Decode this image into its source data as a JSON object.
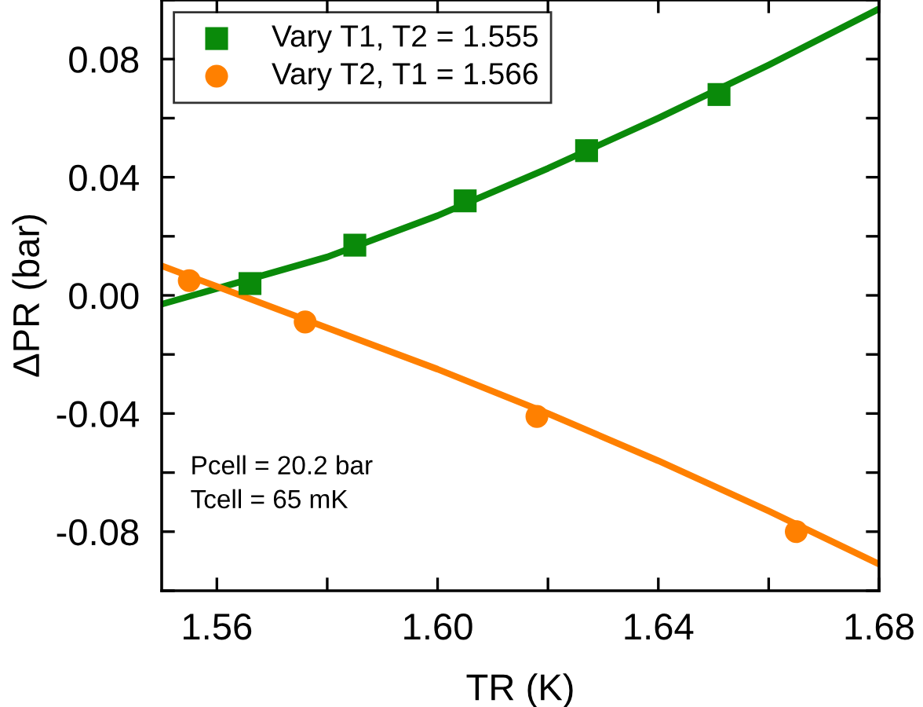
{
  "chart_data": {
    "type": "scatter",
    "xlabel": "TR (K)",
    "ylabel": "ΔPR (bar)",
    "xlim": [
      1.55,
      1.68
    ],
    "xticks": [
      1.56,
      {
        "value": 1.58,
        "label": null
      },
      {
        "value": 1.6,
        "label": "1.60"
      },
      {
        "value": 1.62,
        "label": null
      },
      1.64,
      {
        "value": 1.66,
        "label": null
      },
      1.68
    ],
    "ylim": [
      -0.1,
      0.1
    ],
    "yticks": [
      {
        "value": -0.1,
        "label": null
      },
      -0.08,
      {
        "value": -0.06,
        "label": null
      },
      -0.04,
      {
        "value": -0.02,
        "label": null
      },
      {
        "value": 0,
        "label": "0.00"
      },
      {
        "value": 0.02,
        "label": null
      },
      0.04,
      {
        "value": 0.06,
        "label": null
      },
      0.08,
      {
        "value": 0.1,
        "label": null
      }
    ],
    "grid": false,
    "legend": "top left",
    "annotations": [
      "Pcell = 20.2 bar\nTcell = 65 mK"
    ],
    "series": [
      {
        "name": "Vary T1, T2 = 1.555",
        "color": "#0a8a0a",
        "marker": "square",
        "x": [
          1.566,
          1.585,
          1.605,
          1.627,
          1.651
        ],
        "values": [
          0.004,
          0.017,
          0.032,
          0.049,
          0.068
        ]
      },
      {
        "name": "Vary T2, T1 = 1.566",
        "color": "#ff8000",
        "marker": "circle",
        "x": [
          1.555,
          1.576,
          1.618,
          1.665
        ],
        "values": [
          0.005,
          -0.009,
          -0.041,
          -0.08
        ]
      },
      {
        "type": "line",
        "color": "#0a8a0a",
        "line_style": "solid",
        "x": [
          1.55,
          1.58,
          1.6,
          1.62,
          1.64,
          1.66,
          1.68
        ],
        "values": [
          -0.003,
          0.013,
          0.027,
          0.043,
          0.06,
          0.078,
          0.097
        ]
      },
      {
        "type": "line",
        "color": "#ff8000",
        "line_style": "solid",
        "x": [
          1.55,
          1.56,
          1.58,
          1.6,
          1.62,
          1.64,
          1.66,
          1.68
        ],
        "values": [
          0.01,
          0.003,
          -0.011,
          -0.025,
          -0.04,
          -0.056,
          -0.073,
          -0.091
        ]
      }
    ]
  }
}
